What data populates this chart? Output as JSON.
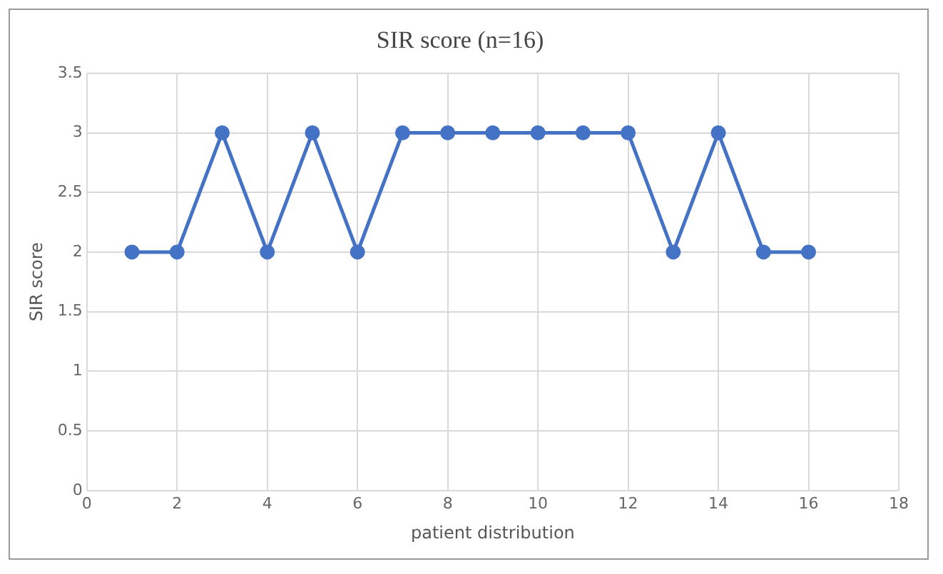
{
  "chart_data": {
    "type": "line",
    "title": "SIR score (n=16)",
    "xlabel": "patient distribution",
    "ylabel": "SIR score",
    "x": [
      1,
      2,
      3,
      4,
      5,
      6,
      7,
      8,
      9,
      10,
      11,
      12,
      13,
      14,
      15,
      16
    ],
    "series": [
      {
        "color": "#4472c4",
        "values": [
          2,
          2,
          3,
          2,
          3,
          2,
          3,
          3,
          3,
          3,
          3,
          3,
          2,
          3,
          2,
          2
        ]
      }
    ],
    "xlim": [
      0,
      18
    ],
    "xticks": [
      0,
      2,
      4,
      6,
      8,
      10,
      12,
      14,
      16,
      18
    ],
    "ylim": [
      0,
      3.5
    ],
    "yticks": [
      0,
      0.5,
      1,
      1.5,
      2,
      2.5,
      3,
      3.5
    ],
    "grid": true,
    "legend": false,
    "marker": "circle",
    "line_style": "solid"
  }
}
